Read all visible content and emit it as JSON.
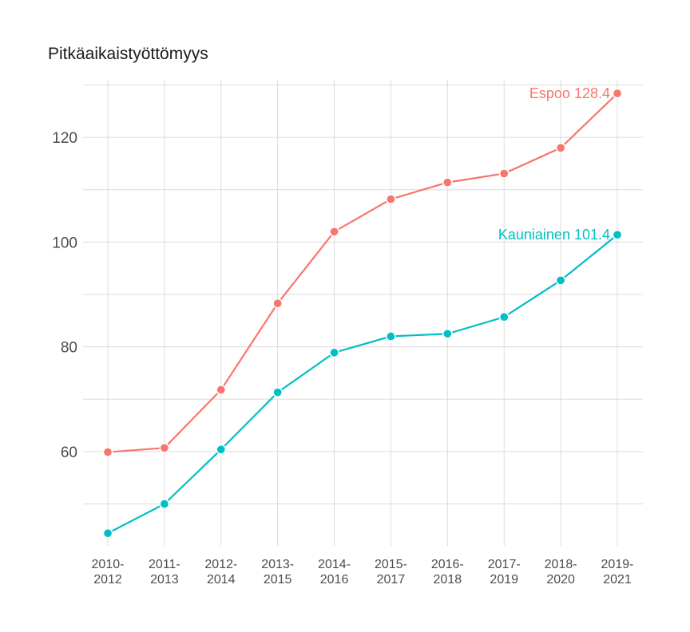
{
  "chart_data": {
    "type": "line",
    "title": "Pitkäaikaistyöttömyys",
    "xlabel": "",
    "ylabel": "",
    "categories": [
      [
        "2010-",
        "2012"
      ],
      [
        "2011-",
        "2013"
      ],
      [
        "2012-",
        "2014"
      ],
      [
        "2013-",
        "2015"
      ],
      [
        "2014-",
        "2016"
      ],
      [
        "2015-",
        "2017"
      ],
      [
        "2016-",
        "2018"
      ],
      [
        "2017-",
        "2019"
      ],
      [
        "2018-",
        "2020"
      ],
      [
        "2019-",
        "2021"
      ]
    ],
    "ylim": [
      42,
      131
    ],
    "yticks": [
      60,
      80,
      100,
      120
    ],
    "grid": true,
    "legend": "none",
    "series": [
      {
        "name": "Espoo",
        "color": "#F8766D",
        "values": [
          59.9,
          60.7,
          71.8,
          88.3,
          102.0,
          108.2,
          111.4,
          113.1,
          118.0,
          128.4
        ],
        "end_label": "Espoo 128.4"
      },
      {
        "name": "Kauniainen",
        "color": "#00BFC4",
        "values": [
          44.4,
          50.0,
          60.4,
          71.3,
          78.9,
          82.0,
          82.5,
          85.7,
          92.7,
          101.4
        ],
        "end_label": "Kauniainen 101.4"
      }
    ]
  }
}
